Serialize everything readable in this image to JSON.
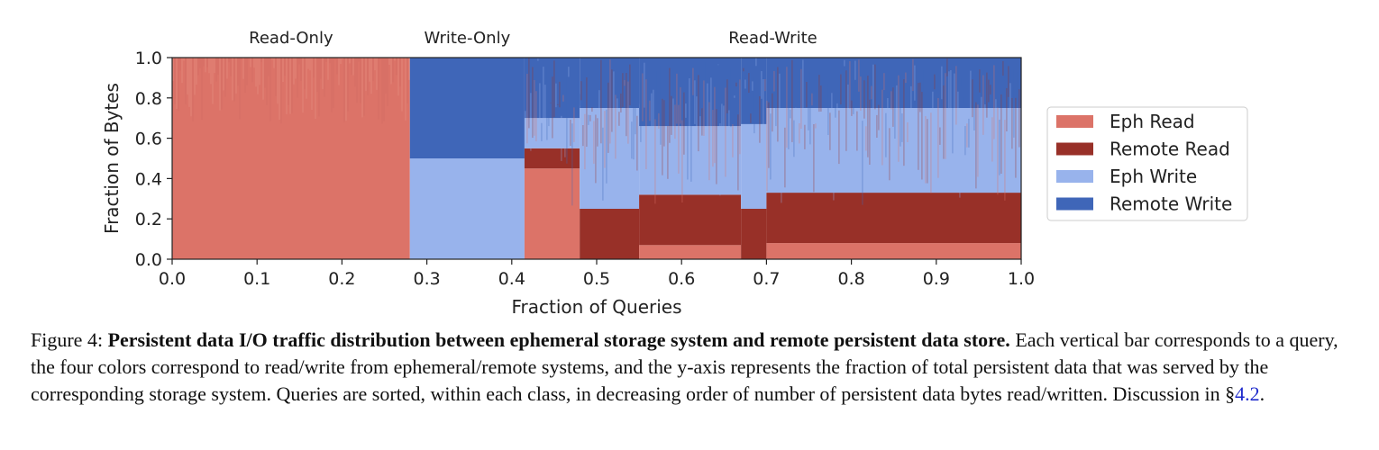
{
  "chart_data": {
    "type": "bar",
    "stacked": true,
    "xlabel": "Fraction of Queries",
    "ylabel": "Fraction of Bytes",
    "xlim": [
      0.0,
      1.0
    ],
    "ylim": [
      0.0,
      1.0
    ],
    "xticks": [
      "0.0",
      "0.1",
      "0.2",
      "0.3",
      "0.4",
      "0.5",
      "0.6",
      "0.7",
      "0.8",
      "0.9",
      "1.0"
    ],
    "yticks": [
      "0.0",
      "0.2",
      "0.4",
      "0.6",
      "0.8",
      "1.0"
    ],
    "grid": false,
    "legend_position": "right",
    "regions": [
      {
        "label": "Read-Only",
        "x_range": [
          0.0,
          0.28
        ]
      },
      {
        "label": "Write-Only",
        "x_range": [
          0.28,
          0.415
        ]
      },
      {
        "label": "Read-Write",
        "x_range": [
          0.415,
          1.0
        ]
      }
    ],
    "series": [
      {
        "name": "Eph Read",
        "color": "#dc7368"
      },
      {
        "name": "Remote Read",
        "color": "#983028"
      },
      {
        "name": "Eph Write",
        "color": "#98b3ec"
      },
      {
        "name": "Remote Write",
        "color": "#3f66b8"
      }
    ],
    "segments": [
      {
        "x_range": [
          0.0,
          0.28
        ],
        "eph_read": 1.0,
        "remote_read": 0.0,
        "eph_write": 0.0,
        "remote_write": 0.0
      },
      {
        "x_range": [
          0.28,
          0.415
        ],
        "eph_read": 0.0,
        "remote_read": 0.0,
        "eph_write": 0.5,
        "remote_write": 0.5
      },
      {
        "x_range": [
          0.415,
          0.48
        ],
        "eph_read": 0.45,
        "remote_read": 0.1,
        "eph_write": 0.15,
        "remote_write": 0.3
      },
      {
        "x_range": [
          0.48,
          0.55
        ],
        "eph_read": 0.0,
        "remote_read": 0.25,
        "eph_write": 0.5,
        "remote_write": 0.25
      },
      {
        "x_range": [
          0.55,
          0.67
        ],
        "eph_read": 0.07,
        "remote_read": 0.25,
        "eph_write": 0.34,
        "remote_write": 0.34
      },
      {
        "x_range": [
          0.67,
          0.7
        ],
        "eph_read": 0.0,
        "remote_read": 0.25,
        "eph_write": 0.42,
        "remote_write": 0.33
      },
      {
        "x_range": [
          0.7,
          1.0
        ],
        "eph_read": 0.08,
        "remote_read": 0.25,
        "eph_write": 0.42,
        "remote_write": 0.25
      }
    ]
  },
  "caption": {
    "label": "Figure 4:",
    "bold": "Persistent data I/O traffic distribution between ephemeral storage system and remote persistent data store.",
    "body": "Each vertical bar corresponds to a query, the four colors correspond to read/write from ephemeral/remote systems, and the y-axis represents the fraction of total persistent data that was served by the corresponding storage system. Queries are sorted, within each class, in decreasing order of number of persistent data bytes read/written. Discussion in §",
    "ref": "4.2",
    "end": "."
  }
}
